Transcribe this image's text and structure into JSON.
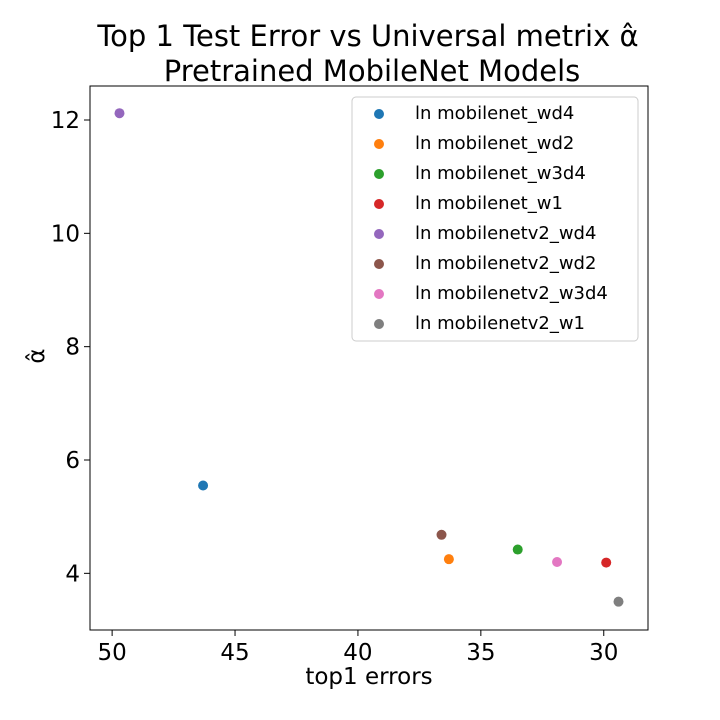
{
  "chart_data": {
    "type": "scatter",
    "title_line1": "Top 1 Test Error vs Universal metrix α̂",
    "title_line2": "Pretrained MobileNet Models",
    "xlabel": "top1 errors",
    "ylabel": "α̂",
    "x_inverted": true,
    "xlim": [
      50.9,
      28.2
    ],
    "ylim": [
      3.0,
      12.6
    ],
    "xticks": [
      50,
      45,
      40,
      35,
      30
    ],
    "yticks": [
      4,
      6,
      8,
      10,
      12
    ],
    "grid": false,
    "legend_position": "top-right",
    "series": [
      {
        "name": "ln mobilenet_wd4",
        "color": "#1f77b4",
        "x": 46.3,
        "y": 5.55
      },
      {
        "name": "ln mobilenet_wd2",
        "color": "#ff7f0e",
        "x": 36.3,
        "y": 4.25
      },
      {
        "name": "ln mobilenet_w3d4",
        "color": "#2ca02c",
        "x": 33.5,
        "y": 4.42
      },
      {
        "name": "ln mobilenet_w1",
        "color": "#d62728",
        "x": 29.9,
        "y": 4.19
      },
      {
        "name": "ln mobilenetv2_wd4",
        "color": "#9467bd",
        "x": 49.7,
        "y": 12.12
      },
      {
        "name": "ln mobilenetv2_wd2",
        "color": "#8c564b",
        "x": 36.6,
        "y": 4.68
      },
      {
        "name": "ln mobilenetv2_w3d4",
        "color": "#e377c2",
        "x": 31.9,
        "y": 4.2
      },
      {
        "name": "ln mobilenetv2_w1",
        "color": "#7f7f7f",
        "x": 29.4,
        "y": 3.5
      }
    ]
  }
}
